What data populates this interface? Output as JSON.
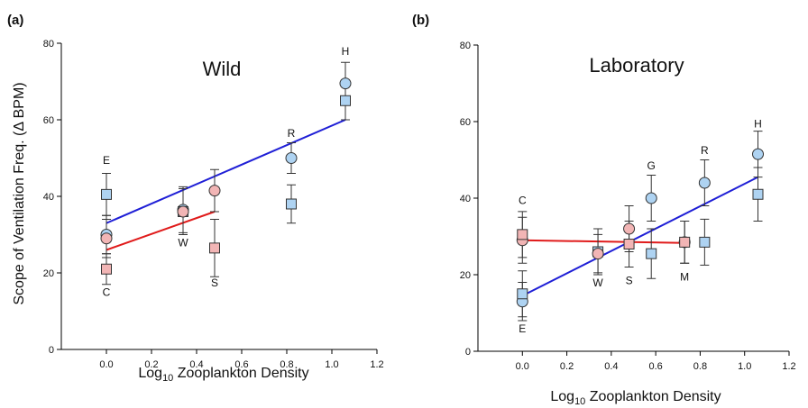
{
  "figure": {
    "y_axis_label": "Scope of Ventilation Freq. (Δ BPM)",
    "x_axis_label_prefix": "Log",
    "x_axis_label_subscript": "10",
    "x_axis_label_suffix": " Zooplankton Density"
  },
  "colors": {
    "blue_marker_fill": "#aed3f2",
    "pink_marker_fill": "#f2b5b5",
    "blue_line": "#1f1fd6",
    "red_line": "#e01b1b",
    "marker_stroke": "#333333"
  },
  "chart_data": [
    {
      "type": "scatter",
      "panel_label": "(a)",
      "title": "Wild",
      "xlabel": "Log10 Zooplankton Density",
      "ylabel": "Scope of Ventilation Freq. (Δ BPM)",
      "xlim": [
        -0.2,
        1.2
      ],
      "ylim": [
        0,
        80
      ],
      "xticks": [
        "0.0",
        "0.2",
        "0.4",
        "0.6",
        "0.8",
        "1.0",
        "1.2"
      ],
      "yticks": [
        "0",
        "20",
        "40",
        "60",
        "80"
      ],
      "grid": false,
      "series": [
        {
          "marker": "circle",
          "color": "blue",
          "points": [
            {
              "x": 0.0,
              "y": 30,
              "err": 5
            },
            {
              "x": 0.34,
              "y": 36.5,
              "err": 6
            },
            {
              "x": 0.82,
              "y": 50,
              "err": 4
            },
            {
              "x": 1.06,
              "y": 69.5,
              "err": 5.5
            }
          ]
        },
        {
          "marker": "square",
          "color": "blue",
          "points": [
            {
              "x": 0.0,
              "y": 40.5,
              "err": 5.5
            },
            {
              "x": 0.34,
              "y": 36,
              "err": 6
            },
            {
              "x": 0.82,
              "y": 38,
              "err": 5
            },
            {
              "x": 1.06,
              "y": 65,
              "err": 5
            }
          ]
        },
        {
          "marker": "circle",
          "color": "pink",
          "points": [
            {
              "x": 0.0,
              "y": 29,
              "err": 5
            },
            {
              "x": 0.34,
              "y": 36,
              "err": 6
            },
            {
              "x": 0.48,
              "y": 41.5,
              "err": 5.5
            }
          ]
        },
        {
          "marker": "square",
          "color": "pink",
          "points": [
            {
              "x": 0.0,
              "y": 21,
              "err": 4
            },
            {
              "x": 0.48,
              "y": 26.5,
              "err": 7.5
            }
          ]
        }
      ],
      "fit_lines": [
        {
          "color": "blue",
          "x": [
            0.0,
            1.06
          ],
          "y": [
            33,
            60
          ]
        },
        {
          "color": "red",
          "x": [
            0.0,
            0.48
          ],
          "y": [
            26,
            36
          ]
        }
      ],
      "annotations": [
        {
          "text": "E",
          "x": 0.0,
          "y": 48.5
        },
        {
          "text": "C",
          "x": 0.0,
          "y": 14
        },
        {
          "text": "W",
          "x": 0.34,
          "y": 27
        },
        {
          "text": "S",
          "x": 0.48,
          "y": 16.5
        },
        {
          "text": "R",
          "x": 0.82,
          "y": 55.5
        },
        {
          "text": "H",
          "x": 1.06,
          "y": 77
        }
      ]
    },
    {
      "type": "scatter",
      "panel_label": "(b)",
      "title": "Laboratory",
      "xlabel": "Log10 Zooplankton Density",
      "ylabel": "",
      "xlim": [
        -0.2,
        1.2
      ],
      "ylim": [
        0,
        80
      ],
      "xticks": [
        "0.0",
        "0.2",
        "0.4",
        "0.6",
        "0.8",
        "1.0",
        "1.2"
      ],
      "yticks": [
        "0",
        "20",
        "40",
        "60",
        "80"
      ],
      "grid": false,
      "series": [
        {
          "marker": "circle",
          "color": "blue",
          "points": [
            {
              "x": 0.0,
              "y": 13,
              "err": 5
            },
            {
              "x": 0.58,
              "y": 40,
              "err": 6
            },
            {
              "x": 0.82,
              "y": 44,
              "err": 6
            },
            {
              "x": 1.06,
              "y": 51.5,
              "err": 6
            }
          ]
        },
        {
          "marker": "square",
          "color": "blue",
          "points": [
            {
              "x": 0.0,
              "y": 15,
              "err": 6
            },
            {
              "x": 0.34,
              "y": 26,
              "err": 6
            },
            {
              "x": 0.58,
              "y": 25.5,
              "err": 6.5
            },
            {
              "x": 0.82,
              "y": 28.5,
              "err": 6
            },
            {
              "x": 1.06,
              "y": 41,
              "err": 7
            }
          ]
        },
        {
          "marker": "circle",
          "color": "pink",
          "points": [
            {
              "x": 0.0,
              "y": 29,
              "err": 6
            },
            {
              "x": 0.34,
              "y": 25.5,
              "err": 5
            },
            {
              "x": 0.48,
              "y": 32,
              "err": 6
            },
            {
              "x": 0.73,
              "y": 28.5,
              "err": 5.5
            }
          ]
        },
        {
          "marker": "square",
          "color": "pink",
          "points": [
            {
              "x": 0.0,
              "y": 30.5,
              "err": 6
            },
            {
              "x": 0.48,
              "y": 28,
              "err": 6
            },
            {
              "x": 0.73,
              "y": 28.5,
              "err": 5.5
            }
          ]
        }
      ],
      "fit_lines": [
        {
          "color": "blue",
          "x": [
            0.0,
            1.06
          ],
          "y": [
            14.5,
            45.5
          ]
        },
        {
          "color": "red",
          "x": [
            0.0,
            0.73
          ],
          "y": [
            29,
            28.3
          ]
        }
      ],
      "annotations": [
        {
          "text": "C",
          "x": 0.0,
          "y": 38.5
        },
        {
          "text": "E",
          "x": 0.0,
          "y": 5
        },
        {
          "text": "W",
          "x": 0.34,
          "y": 17
        },
        {
          "text": "S",
          "x": 0.48,
          "y": 17.5
        },
        {
          "text": "G",
          "x": 0.58,
          "y": 47.5
        },
        {
          "text": "R",
          "x": 0.82,
          "y": 51.5
        },
        {
          "text": "M",
          "x": 0.73,
          "y": 18.5
        },
        {
          "text": "H",
          "x": 1.06,
          "y": 58.5
        }
      ]
    }
  ]
}
